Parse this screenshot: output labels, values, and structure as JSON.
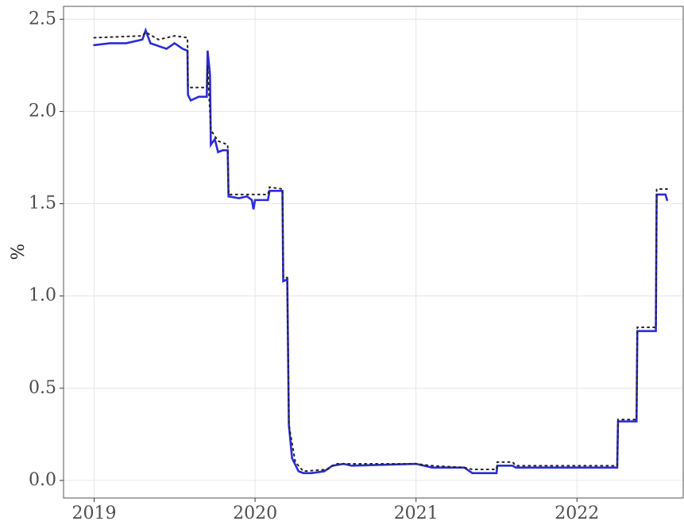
{
  "chart_data": {
    "type": "line",
    "ylabel": "%",
    "xlim": [
      2018.81,
      2022.66
    ],
    "xticks": [
      2019,
      2020,
      2021,
      2022
    ],
    "ylim": [
      -0.095,
      2.57
    ],
    "yticks": [
      {
        "value": 0,
        "label": "0.0"
      },
      {
        "value": 0.5,
        "label": "0.5"
      },
      {
        "value": 1,
        "label": "1.0"
      },
      {
        "value": 1.5,
        "label": "1.5"
      },
      {
        "value": 2,
        "label": "2.0"
      },
      {
        "value": 2.5,
        "label": "2.5"
      }
    ],
    "grid": true,
    "series": [
      {
        "color": "#2b2bd9",
        "dash": "solid",
        "x": [
          2019.0,
          2019.1,
          2019.2,
          2019.3,
          2019.32,
          2019.35,
          2019.45,
          2019.5,
          2019.55,
          2019.58,
          2019.583,
          2019.6,
          2019.65,
          2019.7,
          2019.705,
          2019.72,
          2019.725,
          2019.75,
          2019.77,
          2019.8,
          2019.83,
          2019.835,
          2019.9,
          2019.95,
          2019.98,
          2019.99,
          2020.0,
          2020.08,
          2020.09,
          2020.17,
          2020.175,
          2020.2,
          2020.21,
          2020.23,
          2020.27,
          2020.3,
          2020.35,
          2020.43,
          2020.48,
          2020.55,
          2020.6,
          2021.0,
          2021.1,
          2021.3,
          2021.35,
          2021.5,
          2021.505,
          2021.6,
          2021.62,
          2022.25,
          2022.255,
          2022.37,
          2022.375,
          2022.49,
          2022.495,
          2022.55,
          2022.56
        ],
        "values": [
          2.36,
          2.37,
          2.37,
          2.39,
          2.44,
          2.37,
          2.34,
          2.37,
          2.34,
          2.33,
          2.09,
          2.06,
          2.08,
          2.08,
          2.33,
          2.2,
          1.82,
          1.85,
          1.78,
          1.79,
          1.79,
          1.54,
          1.53,
          1.54,
          1.52,
          1.47,
          1.52,
          1.52,
          1.57,
          1.57,
          1.08,
          1.09,
          0.3,
          0.12,
          0.05,
          0.04,
          0.04,
          0.05,
          0.08,
          0.09,
          0.08,
          0.09,
          0.07,
          0.07,
          0.04,
          0.04,
          0.08,
          0.08,
          0.07,
          0.07,
          0.32,
          0.32,
          0.81,
          0.81,
          1.55,
          1.55,
          1.52
        ]
      },
      {
        "color": "#222222",
        "dash": "dotted",
        "x": [
          2019.0,
          2019.3,
          2019.32,
          2019.4,
          2019.5,
          2019.58,
          2019.583,
          2019.7,
          2019.705,
          2019.725,
          2019.77,
          2019.83,
          2019.835,
          2020.08,
          2020.09,
          2020.17,
          2020.175,
          2020.2,
          2020.21,
          2020.25,
          2020.3,
          2020.45,
          2020.5,
          2021.0,
          2021.1,
          2021.3,
          2021.35,
          2021.5,
          2021.505,
          2021.6,
          2021.62,
          2022.25,
          2022.255,
          2022.37,
          2022.375,
          2022.49,
          2022.495,
          2022.56
        ],
        "values": [
          2.4,
          2.41,
          2.43,
          2.39,
          2.41,
          2.4,
          2.13,
          2.13,
          2.25,
          1.9,
          1.84,
          1.82,
          1.55,
          1.55,
          1.59,
          1.58,
          1.1,
          1.1,
          0.3,
          0.1,
          0.05,
          0.06,
          0.09,
          0.09,
          0.08,
          0.07,
          0.06,
          0.06,
          0.1,
          0.1,
          0.08,
          0.08,
          0.33,
          0.33,
          0.83,
          0.83,
          1.58,
          1.58
        ]
      }
    ]
  }
}
